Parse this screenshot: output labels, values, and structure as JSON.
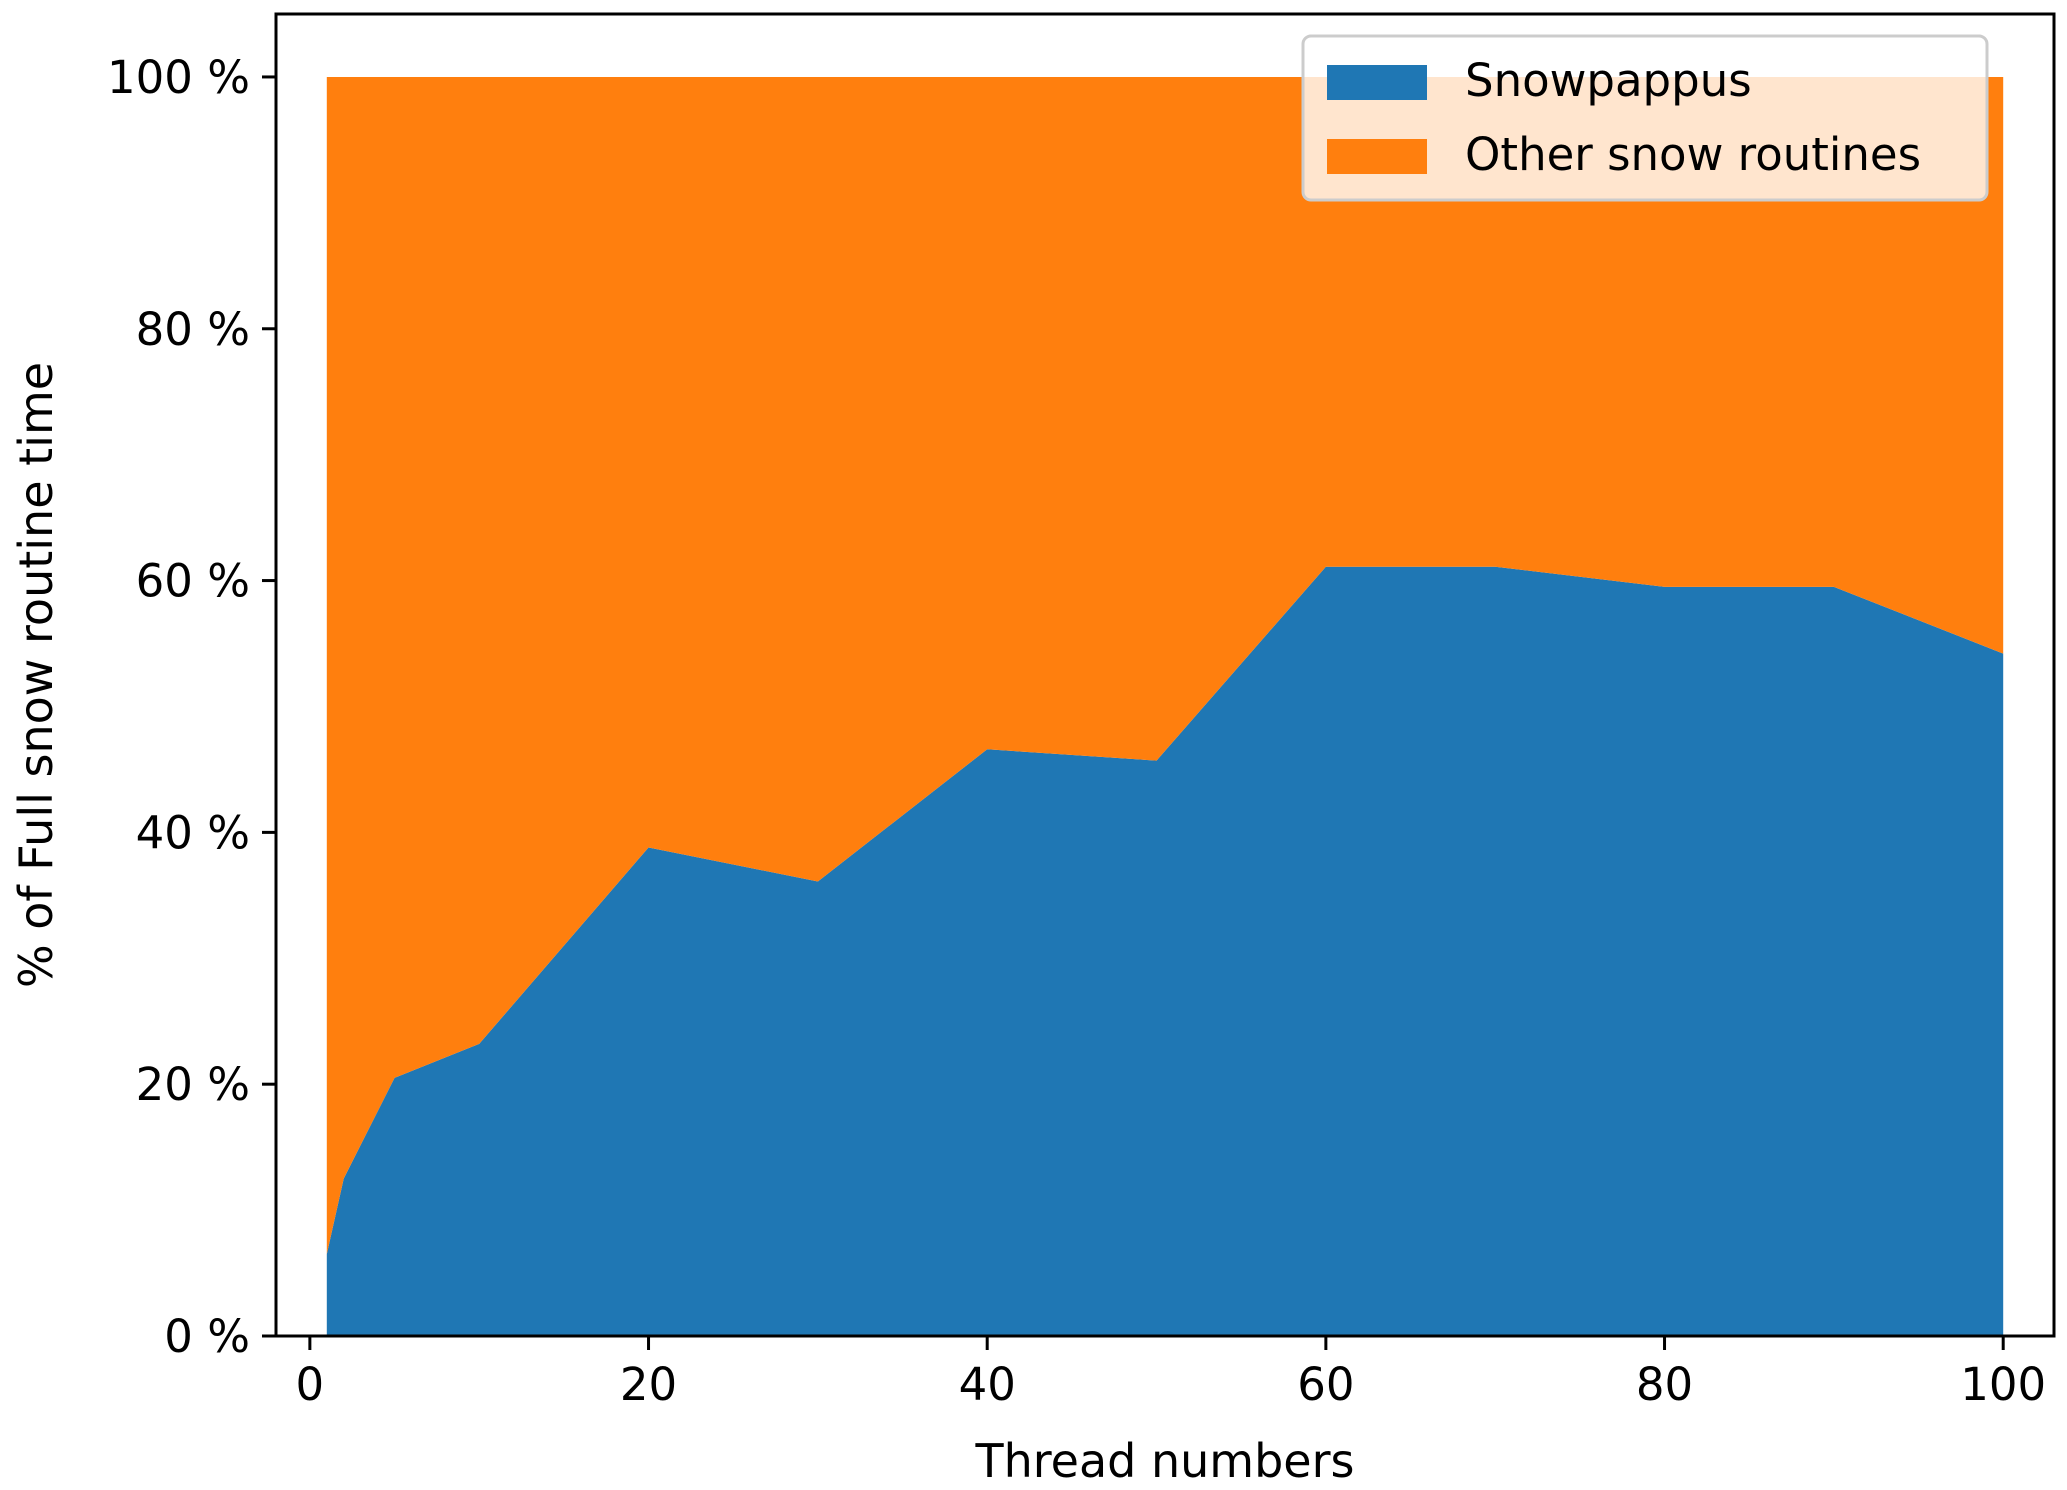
{
  "chart_data": {
    "type": "area",
    "stacked": true,
    "normalized": true,
    "xlabel": "Thread numbers",
    "ylabel": "% of Full snow routine time",
    "xlim": [
      -2,
      103
    ],
    "ylim": [
      0,
      105
    ],
    "xticks": [
      0,
      20,
      40,
      60,
      80,
      100
    ],
    "yticks": [
      0,
      20,
      40,
      60,
      80,
      100
    ],
    "ytick_suffix": " %",
    "grid": false,
    "legend_position": "top-right",
    "x": [
      1,
      2,
      5,
      10,
      20,
      30,
      40,
      50,
      60,
      70,
      80,
      90,
      100
    ],
    "series": [
      {
        "name": "Snowpappus",
        "color": "#1f77b4",
        "values": [
          6.5,
          12.5,
          20.5,
          23.2,
          38.8,
          36.1,
          46.6,
          45.7,
          61.1,
          61.1,
          59.5,
          59.5,
          54.2
        ]
      },
      {
        "name": "Other snow routines",
        "color": "#ff7f0e",
        "values": [
          93.5,
          87.5,
          79.5,
          76.8,
          61.2,
          63.9,
          53.4,
          54.3,
          38.9,
          38.9,
          40.5,
          40.5,
          45.8
        ]
      }
    ]
  }
}
